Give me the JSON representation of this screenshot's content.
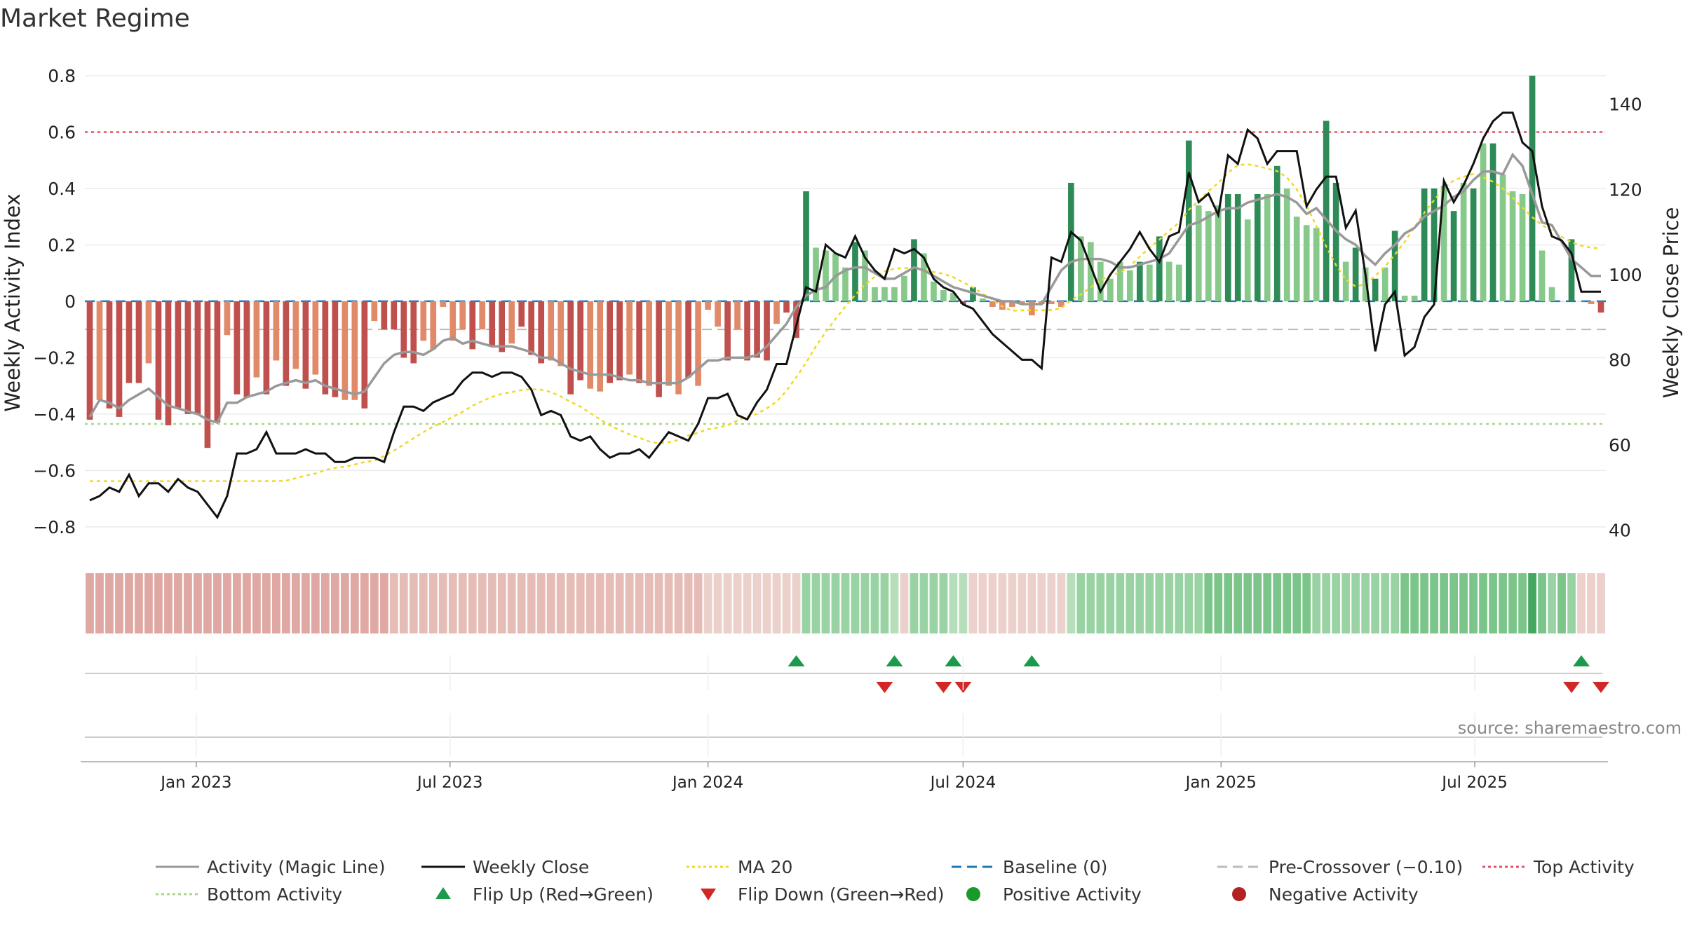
{
  "title": "Market Regime",
  "source": "source: sharemaestro.com",
  "colors": {
    "neg_strong": "#c0504d",
    "neg_light": "#e08a6a",
    "pos_strong": "#2e8b57",
    "pos_light": "#86c98a",
    "magic": "#999999",
    "close": "#111111",
    "ma20": "#f0d824",
    "baseline": "#1f77b4",
    "precross": "#bbbbbb",
    "top": "#e05565",
    "bottom": "#a8d889",
    "flip_up": "#1a9a4a",
    "flip_down": "#d32626",
    "pos_marker": "#1a9a2a",
    "neg_marker": "#b22222"
  },
  "legend": [
    {
      "label": "Activity (Magic Line)",
      "kind": "line",
      "color": "#999999",
      "dash": ""
    },
    {
      "label": "Weekly Close",
      "kind": "line",
      "color": "#111111",
      "dash": ""
    },
    {
      "label": "MA 20",
      "kind": "line",
      "color": "#f0d824",
      "dash": "4,4"
    },
    {
      "label": "Baseline (0)",
      "kind": "line",
      "color": "#1f77b4",
      "dash": "14,8"
    },
    {
      "label": "Pre-Crossover (−0.10)",
      "kind": "line",
      "color": "#bbbbbb",
      "dash": "14,8"
    },
    {
      "label": "Top Activity",
      "kind": "line",
      "color": "#e05565",
      "dash": "4,4"
    },
    {
      "label": "Bottom Activity",
      "kind": "line",
      "color": "#a8d889",
      "dash": "4,4"
    },
    {
      "label": "Flip Up (Red→Green)",
      "kind": "tri_up",
      "color": "#1a9a4a",
      "dash": ""
    },
    {
      "label": "Flip Down (Green→Red)",
      "kind": "tri_down",
      "color": "#d32626",
      "dash": ""
    },
    {
      "label": "Positive Activity",
      "kind": "dot",
      "color": "#1a9a2a",
      "dash": ""
    },
    {
      "label": "Negative Activity",
      "kind": "dot",
      "color": "#b22222",
      "dash": ""
    }
  ],
  "chart_data": {
    "type": "bar",
    "title": "Market Regime",
    "x_start": "2022-10-17",
    "week_count": 155,
    "x_tick_labels": [
      "Jan 2023",
      "Jul 2023",
      "Jan 2024",
      "Jul 2024",
      "Jan 2025",
      "Jul 2025"
    ],
    "x_tick_dates": [
      "2023-01-01",
      "2023-07-01",
      "2024-01-01",
      "2024-07-01",
      "2025-01-01",
      "2025-07-01"
    ],
    "left_axis": {
      "label": "Weekly Activity Index",
      "ylim": [
        -0.86,
        0.8
      ],
      "ticks": [
        -0.8,
        -0.6,
        -0.4,
        -0.2,
        0,
        0.2,
        0.4,
        0.6,
        0.8
      ],
      "tick_labels": [
        "−0.8",
        "−0.6",
        "−0.4",
        "−0.2",
        "0",
        "0.2",
        "0.4",
        "0.6",
        "0.8"
      ]
    },
    "right_axis": {
      "label": "Weekly Close Price",
      "ylim": [
        36.8,
        146.7
      ],
      "ticks": [
        40,
        60,
        80,
        100,
        120,
        140
      ],
      "tick_labels": [
        "40",
        "60",
        "80",
        "100",
        "120",
        "140"
      ]
    },
    "reference_lines": {
      "baseline": 0,
      "pre_crossover": -0.1,
      "top_activity": 0.6,
      "bottom_activity": -0.435
    },
    "activity": [
      -0.42,
      -0.35,
      -0.38,
      -0.41,
      -0.29,
      -0.29,
      -0.22,
      -0.42,
      -0.44,
      -0.38,
      -0.4,
      -0.4,
      -0.52,
      -0.43,
      -0.12,
      -0.33,
      -0.34,
      -0.27,
      -0.33,
      -0.21,
      -0.3,
      -0.24,
      -0.31,
      -0.26,
      -0.33,
      -0.34,
      -0.35,
      -0.35,
      -0.38,
      -0.07,
      -0.1,
      -0.1,
      -0.2,
      -0.22,
      -0.14,
      -0.17,
      -0.02,
      -0.14,
      -0.1,
      -0.17,
      -0.1,
      -0.16,
      -0.18,
      -0.15,
      -0.09,
      -0.19,
      -0.22,
      -0.21,
      -0.23,
      -0.33,
      -0.28,
      -0.31,
      -0.32,
      -0.29,
      -0.28,
      -0.26,
      -0.29,
      -0.3,
      -0.34,
      -0.3,
      -0.33,
      -0.27,
      -0.3,
      -0.03,
      -0.09,
      -0.21,
      -0.1,
      -0.21,
      -0.2,
      -0.21,
      -0.08,
      -0.04,
      -0.13,
      0.39,
      0.19,
      0.18,
      0.17,
      0.12,
      0.21,
      0.18,
      0.05,
      0.05,
      0.05,
      0.09,
      0.22,
      0.17,
      0.07,
      0.04,
      0.03,
      -0.01,
      0.05,
      0.01,
      -0.02,
      -0.03,
      -0.02,
      -0.01,
      -0.05,
      -0.01,
      -0.01,
      -0.02,
      0.42,
      0.23,
      0.21,
      0.14,
      0.08,
      0.14,
      0.11,
      0.14,
      0.13,
      0.23,
      0.14,
      0.13,
      0.57,
      0.34,
      0.32,
      0.34,
      0.38,
      0.38,
      0.29,
      0.38,
      0.38,
      0.48,
      0.4,
      0.3,
      0.27,
      0.26,
      0.64,
      0.42,
      0.14,
      0.19,
      0.12,
      0.08,
      0.12,
      0.25,
      0.02,
      0.02,
      0.4,
      0.4,
      0.41,
      0.32,
      0.42,
      0.4,
      0.56,
      0.56,
      0.45,
      0.39,
      0.38,
      0.8,
      0.18,
      0.05,
      0.0,
      0.22,
      0.0,
      -0.01,
      -0.04
    ],
    "activity_strong": [
      1,
      0,
      1,
      1,
      1,
      1,
      0,
      1,
      1,
      1,
      1,
      1,
      1,
      1,
      0,
      1,
      1,
      0,
      1,
      0,
      1,
      0,
      1,
      0,
      1,
      1,
      0,
      0,
      1,
      0,
      1,
      1,
      1,
      1,
      0,
      0,
      0,
      0,
      0,
      1,
      0,
      1,
      1,
      0,
      1,
      1,
      1,
      0,
      0,
      1,
      1,
      0,
      0,
      1,
      1,
      0,
      1,
      0,
      1,
      0,
      0,
      1,
      0,
      0,
      0,
      1,
      0,
      1,
      1,
      1,
      0,
      1,
      1,
      1,
      0,
      0,
      0,
      0,
      1,
      0,
      0,
      0,
      0,
      0,
      1,
      0,
      0,
      0,
      0,
      1,
      1,
      0,
      0,
      0,
      0,
      0,
      0,
      0,
      0,
      0,
      1,
      0,
      0,
      0,
      0,
      0,
      0,
      1,
      0,
      1,
      0,
      0,
      1,
      0,
      0,
      0,
      1,
      1,
      0,
      1,
      0,
      1,
      0,
      0,
      0,
      0,
      1,
      1,
      0,
      1,
      0,
      1,
      0,
      1,
      0,
      0,
      1,
      1,
      0,
      1,
      0,
      1,
      0,
      1,
      0,
      0,
      0,
      1,
      0,
      0,
      0,
      1,
      0,
      0,
      1
    ],
    "magic_line": [
      -0.41,
      -0.35,
      -0.36,
      -0.38,
      -0.35,
      -0.33,
      -0.31,
      -0.34,
      -0.37,
      -0.38,
      -0.39,
      -0.4,
      -0.42,
      -0.43,
      -0.36,
      -0.36,
      -0.34,
      -0.33,
      -0.32,
      -0.3,
      -0.29,
      -0.28,
      -0.29,
      -0.28,
      -0.3,
      -0.31,
      -0.32,
      -0.33,
      -0.32,
      -0.27,
      -0.22,
      -0.19,
      -0.18,
      -0.18,
      -0.19,
      -0.17,
      -0.14,
      -0.13,
      -0.15,
      -0.14,
      -0.15,
      -0.16,
      -0.16,
      -0.16,
      -0.17,
      -0.18,
      -0.2,
      -0.2,
      -0.22,
      -0.24,
      -0.25,
      -0.26,
      -0.26,
      -0.26,
      -0.27,
      -0.28,
      -0.28,
      -0.29,
      -0.29,
      -0.29,
      -0.29,
      -0.27,
      -0.24,
      -0.21,
      -0.21,
      -0.2,
      -0.2,
      -0.2,
      -0.19,
      -0.16,
      -0.12,
      -0.08,
      -0.02,
      0.02,
      0.04,
      0.05,
      0.09,
      0.11,
      0.12,
      0.12,
      0.1,
      0.08,
      0.08,
      0.1,
      0.12,
      0.11,
      0.09,
      0.07,
      0.05,
      0.04,
      0.03,
      0.02,
      0.01,
      0.0,
      0.0,
      -0.01,
      -0.01,
      -0.01,
      0.05,
      0.11,
      0.14,
      0.15,
      0.15,
      0.15,
      0.14,
      0.12,
      0.12,
      0.13,
      0.14,
      0.15,
      0.17,
      0.22,
      0.27,
      0.28,
      0.3,
      0.32,
      0.33,
      0.33,
      0.35,
      0.36,
      0.37,
      0.38,
      0.37,
      0.35,
      0.31,
      0.33,
      0.29,
      0.25,
      0.22,
      0.2,
      0.16,
      0.13,
      0.17,
      0.2,
      0.24,
      0.26,
      0.3,
      0.32,
      0.34,
      0.37,
      0.39,
      0.43,
      0.46,
      0.46,
      0.45,
      0.52,
      0.48,
      0.38,
      0.28,
      0.27,
      0.21,
      0.15,
      0.12,
      0.09,
      0.09
    ],
    "weekly_close": [
      47,
      48,
      50,
      49,
      53,
      48,
      51,
      51,
      49,
      52,
      50,
      49,
      46,
      43,
      48,
      58,
      58,
      59,
      63,
      58,
      58,
      58,
      59,
      58,
      58,
      56,
      56,
      57,
      57,
      57,
      56,
      63,
      69,
      69,
      68,
      70,
      71,
      72,
      75,
      77,
      77,
      76,
      77,
      77,
      76,
      73,
      67,
      68,
      67,
      62,
      61,
      62,
      59,
      57,
      58,
      58,
      59,
      57,
      60,
      63,
      62,
      61,
      65,
      71,
      71,
      72,
      67,
      66,
      70,
      73,
      79,
      79,
      88,
      97,
      96,
      107,
      105,
      104,
      109,
      104,
      101,
      99,
      106,
      105,
      106,
      104,
      99,
      97,
      96,
      93,
      92,
      89,
      86,
      84,
      82,
      80,
      80,
      78,
      104,
      103,
      110,
      108,
      102,
      96,
      100,
      103,
      106,
      110,
      106,
      103,
      109,
      110,
      124,
      117,
      119,
      114,
      128,
      126,
      134,
      132,
      126,
      129,
      129,
      129,
      116,
      120,
      123,
      123,
      111,
      115,
      100,
      82,
      93,
      96,
      81,
      83,
      90,
      93,
      122,
      117,
      121,
      126,
      132,
      136,
      138,
      138,
      131,
      129,
      116,
      109,
      108,
      105,
      96,
      96,
      96
    ],
    "ma20": [
      51.5,
      51.5,
      51.5,
      51.5,
      51.5,
      51.5,
      51.5,
      51.5,
      51.5,
      51.5,
      51.5,
      51.5,
      51.5,
      51.5,
      51.5,
      51.5,
      51.5,
      51.5,
      51.5,
      51.5,
      51.6,
      52.2,
      52.8,
      53.3,
      54.1,
      54.6,
      54.9,
      55.4,
      56.0,
      56.3,
      57.4,
      58.7,
      60.1,
      61.6,
      63.0,
      64.3,
      65.4,
      66.6,
      67.8,
      69.2,
      70.3,
      71.3,
      72.0,
      72.4,
      72.9,
      73.1,
      73.0,
      72.4,
      71.4,
      70.1,
      69.0,
      67.5,
      66.0,
      64.6,
      63.5,
      62.5,
      61.7,
      60.8,
      60.4,
      60.6,
      61.2,
      62.2,
      62.9,
      63.7,
      64.1,
      64.6,
      65.7,
      66.6,
      67.3,
      68.6,
      70.2,
      72.7,
      75.9,
      79.3,
      83.2,
      86.5,
      89.6,
      92.5,
      95.2,
      97.6,
      99.5,
      100.8,
      101.4,
      101.5,
      101.6,
      101.1,
      100.6,
      100.2,
      99.4,
      98.2,
      97.0,
      95.5,
      94.1,
      92.5,
      91.5,
      91.6,
      91.6,
      91.6,
      91.7,
      92.1,
      94.0,
      95.3,
      97.0,
      98.7,
      99.8,
      100.5,
      102.0,
      104.2,
      106.3,
      108.2,
      110.3,
      112.2,
      115.2,
      117.3,
      119.6,
      121.5,
      123.9,
      125.7,
      125.9,
      125.5,
      124.9,
      124.3,
      122.8,
      120.0,
      116.2,
      111.4,
      106.6,
      102.2,
      98.8,
      97.2,
      97.8,
      99.7,
      101.9,
      104.7,
      107.7,
      111.2,
      114.5,
      117.5,
      120.3,
      122.1,
      123.0,
      123.6,
      122.8,
      121.8,
      120.2,
      118.0,
      115.7,
      113.5,
      111.6,
      110.3,
      108.9,
      107.6,
      106.8,
      106.3,
      106.2
    ],
    "regime_strength": [
      3,
      3,
      3,
      3,
      3,
      3,
      3,
      3,
      3,
      3,
      3,
      3,
      3,
      3,
      3,
      3,
      3,
      3,
      3,
      3,
      3,
      3,
      3,
      3,
      3,
      3,
      3,
      3,
      3,
      3,
      3,
      2,
      2,
      2,
      2,
      2,
      2,
      2,
      2,
      2,
      2,
      2,
      2,
      2,
      2,
      2,
      2,
      2,
      2,
      2,
      2,
      2,
      2,
      2,
      2,
      2,
      2,
      2,
      2,
      2,
      2,
      2,
      2,
      1,
      1,
      1,
      1,
      1,
      1,
      1,
      1,
      1,
      1,
      2,
      2,
      2,
      2,
      2,
      2,
      2,
      2,
      2,
      1,
      1,
      2,
      2,
      2,
      2,
      1,
      1,
      1,
      1,
      1,
      1,
      1,
      1,
      1,
      1,
      1,
      1,
      1,
      2,
      2,
      2,
      2,
      2,
      2,
      2,
      2,
      2,
      2,
      2,
      2,
      2,
      3,
      3,
      3,
      3,
      3,
      3,
      3,
      3,
      3,
      3,
      3,
      2,
      2,
      2,
      2,
      2,
      2,
      2,
      2,
      2,
      3,
      3,
      3,
      3,
      3,
      3,
      3,
      3,
      3,
      3,
      3,
      3,
      3,
      4,
      3,
      2,
      3,
      2,
      1,
      1,
      1
    ],
    "regime_sign": [
      -1,
      -1,
      -1,
      -1,
      -1,
      -1,
      -1,
      -1,
      -1,
      -1,
      -1,
      -1,
      -1,
      -1,
      -1,
      -1,
      -1,
      -1,
      -1,
      -1,
      -1,
      -1,
      -1,
      -1,
      -1,
      -1,
      -1,
      -1,
      -1,
      -1,
      -1,
      -1,
      -1,
      -1,
      -1,
      -1,
      -1,
      -1,
      -1,
      -1,
      -1,
      -1,
      -1,
      -1,
      -1,
      -1,
      -1,
      -1,
      -1,
      -1,
      -1,
      -1,
      -1,
      -1,
      -1,
      -1,
      -1,
      -1,
      -1,
      -1,
      -1,
      -1,
      -1,
      -1,
      -1,
      -1,
      -1,
      -1,
      -1,
      -1,
      -1,
      -1,
      -1,
      1,
      1,
      1,
      1,
      1,
      1,
      1,
      1,
      1,
      1,
      -1,
      1,
      1,
      1,
      1,
      1,
      1,
      -1,
      -1,
      -1,
      -1,
      -1,
      -1,
      -1,
      -1,
      -1,
      -1,
      1,
      1,
      1,
      1,
      1,
      1,
      1,
      1,
      1,
      1,
      1,
      1,
      1,
      1,
      1,
      1,
      1,
      1,
      1,
      1,
      1,
      1,
      1,
      1,
      1,
      1,
      1,
      1,
      1,
      1,
      1,
      1,
      1,
      1,
      1,
      1,
      1,
      1,
      1,
      1,
      1,
      1,
      1,
      1,
      1,
      1,
      1,
      1,
      1,
      1,
      1,
      1,
      -1,
      -1,
      -1
    ],
    "flip_up_weeks": [
      72,
      82,
      88,
      96,
      152
    ],
    "flip_down_weeks": [
      81,
      87,
      89,
      151,
      154
    ]
  }
}
